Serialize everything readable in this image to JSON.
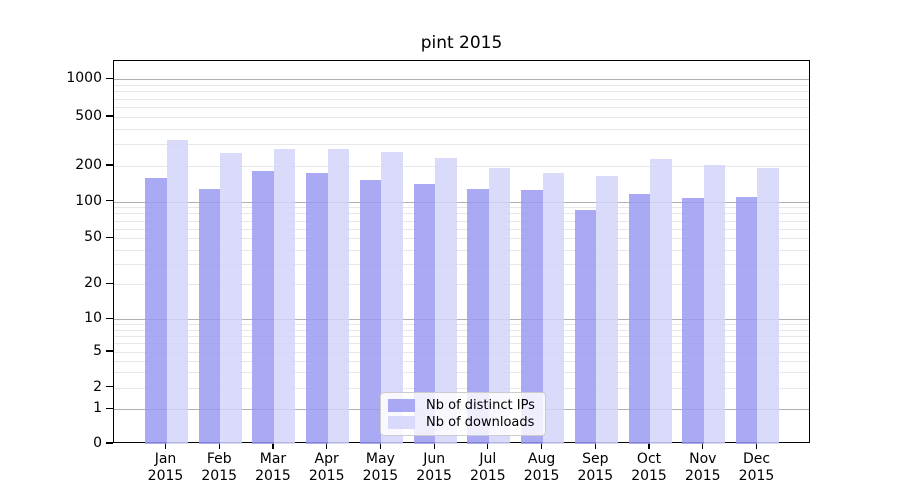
{
  "chart_data": {
    "type": "bar",
    "title": "pint 2015",
    "categories": [
      "Jan 2015",
      "Feb 2015",
      "Mar 2015",
      "Apr 2015",
      "May 2015",
      "Jun 2015",
      "Jul 2015",
      "Aug 2015",
      "Sep 2015",
      "Oct 2015",
      "Nov 2015",
      "Dec 2015"
    ],
    "series": [
      {
        "name": "Nb of distinct IPs",
        "color": "#9a9af2",
        "values": [
          158,
          128,
          182,
          174,
          152,
          141,
          128,
          126,
          86,
          117,
          108,
          110
        ]
      },
      {
        "name": "Nb of downloads",
        "color": "#d3d3fa",
        "values": [
          325,
          256,
          275,
          274,
          259,
          231,
          194,
          176,
          165,
          227,
          204,
          192
        ]
      }
    ],
    "y_ticks": [
      0,
      1,
      2,
      5,
      10,
      20,
      50,
      100,
      200,
      500,
      1000
    ],
    "yscale": "symlog",
    "ylim": [
      0,
      1400
    ],
    "grid": true,
    "legend_position": "lower center",
    "grid_major_color": "#b0b0b0",
    "grid_minor_color": "#e7e7e7",
    "axis_color": "#000000",
    "text_color": "#000000",
    "bar_opacity": 0.85
  }
}
